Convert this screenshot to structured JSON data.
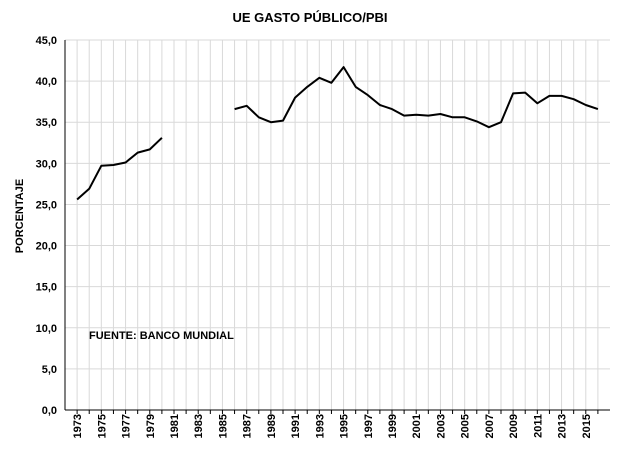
{
  "chart_data": {
    "type": "line",
    "title": "UE GASTO PÚBLICO/PBI",
    "ylabel": "PORCENTAJE",
    "xlabel": "",
    "ylim": [
      0,
      45
    ],
    "ytick_values": [
      0,
      5,
      10,
      15,
      20,
      25,
      30,
      35,
      40,
      45
    ],
    "ytick_labels": [
      "0,0",
      "5,0",
      "10,0",
      "15,0",
      "20,0",
      "25,0",
      "30,0",
      "35,0",
      "40,0",
      "45,0"
    ],
    "xlim": [
      1973,
      2016
    ],
    "xtick_labels": [
      "1973",
      "1975",
      "1977",
      "1979",
      "1981",
      "1983",
      "1985",
      "1987",
      "1989",
      "1991",
      "1993",
      "1995",
      "1997",
      "1999",
      "2001",
      "2003",
      "2005",
      "2007",
      "2009",
      "2011",
      "2013",
      "2015"
    ],
    "grid": true,
    "annotation": "FUENTE: BANCO MUNDIAL",
    "series": [
      {
        "segments": [
          {
            "x": [
              1973,
              1974,
              1975,
              1976,
              1977,
              1978,
              1979,
              1980
            ],
            "y": [
              25.6,
              26.9,
              29.7,
              29.8,
              30.1,
              31.3,
              31.7,
              33.1
            ]
          },
          {
            "x": [
              1986,
              1987,
              1988,
              1989,
              1990,
              1991,
              1992,
              1993,
              1994,
              1995,
              1996,
              1997,
              1998,
              1999,
              2000,
              2001,
              2002,
              2003,
              2004,
              2005,
              2006,
              2007,
              2008,
              2009,
              2010,
              2011,
              2012,
              2013,
              2014,
              2015,
              2016
            ],
            "y": [
              36.6,
              37.0,
              35.6,
              35.0,
              35.2,
              38.0,
              39.3,
              40.4,
              39.8,
              41.7,
              39.3,
              38.3,
              37.1,
              36.6,
              35.8,
              35.9,
              35.8,
              36.0,
              35.6,
              35.6,
              35.1,
              34.4,
              35.0,
              38.5,
              38.6,
              37.3,
              38.2,
              38.2,
              37.8,
              37.1,
              36.6
            ]
          }
        ],
        "color": "#000000"
      }
    ]
  }
}
